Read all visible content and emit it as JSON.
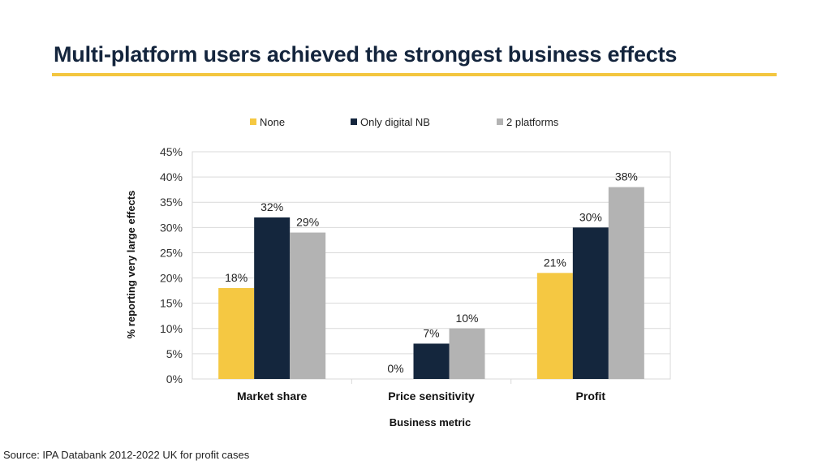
{
  "title": "Multi-platform users achieved the strongest business effects",
  "source": "Source: IPA Databank 2012-2022 UK for profit cases",
  "colors": {
    "accent": "#f3c63f",
    "title": "#14253d"
  },
  "chart_data": {
    "type": "bar",
    "categories": [
      "Market share",
      "Price sensitivity",
      "Profit"
    ],
    "series": [
      {
        "name": "None",
        "color": "#f5c842",
        "values": [
          18,
          0,
          21
        ],
        "labels": [
          "18%",
          "0%",
          "21%"
        ]
      },
      {
        "name": "Only digital NB",
        "color": "#14263d",
        "values": [
          32,
          7,
          30
        ],
        "labels": [
          "32%",
          "7%",
          "30%"
        ]
      },
      {
        "name": "2 platforms",
        "color": "#b3b3b3",
        "values": [
          29,
          10,
          38
        ],
        "labels": [
          "29%",
          "10%",
          "38%"
        ]
      }
    ],
    "yticks": [
      "0%",
      "5%",
      "10%",
      "15%",
      "20%",
      "25%",
      "30%",
      "35%",
      "40%",
      "45%"
    ],
    "ylim": [
      0,
      45
    ],
    "xlabel": "Business metric",
    "ylabel": "% reporting very large effects",
    "grid": true,
    "legend_position": "top"
  }
}
